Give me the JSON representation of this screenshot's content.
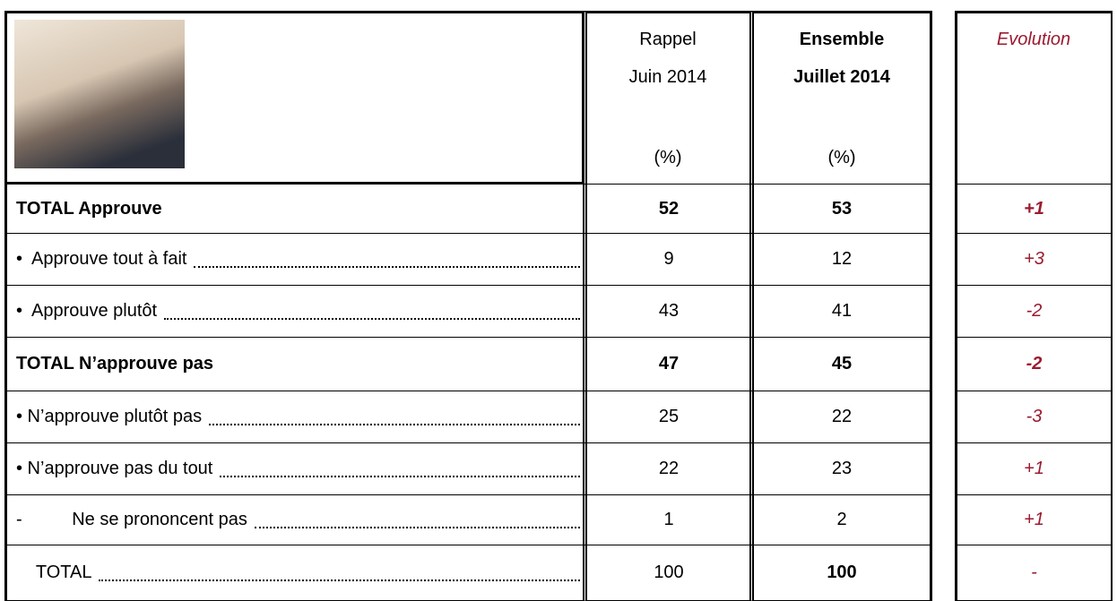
{
  "header": {
    "rappel": [
      "Rappel",
      "Juin 2014",
      "(%)"
    ],
    "ensemble": [
      "Ensemble",
      "Juillet 2014",
      "(%)"
    ],
    "evolution": "Evolution"
  },
  "table": {
    "rows": [
      [
        "TOTAL Approuve",
        52,
        53,
        "+1"
      ],
      [
        "•  Approuve tout à fait",
        9,
        12,
        "+3"
      ],
      [
        "•  Approuve plutôt",
        43,
        41,
        "-2"
      ],
      [
        "TOTAL N’approuve pas",
        47,
        45,
        "-2"
      ],
      [
        "• N’approuve plutôt pas",
        25,
        22,
        "-3"
      ],
      [
        "• N’approuve pas du tout",
        22,
        23,
        "+1"
      ],
      [
        "-          Ne se prononcent pas",
        1,
        2,
        "+1"
      ],
      [
        "    TOTAL",
        100,
        100,
        "-"
      ]
    ]
  }
}
